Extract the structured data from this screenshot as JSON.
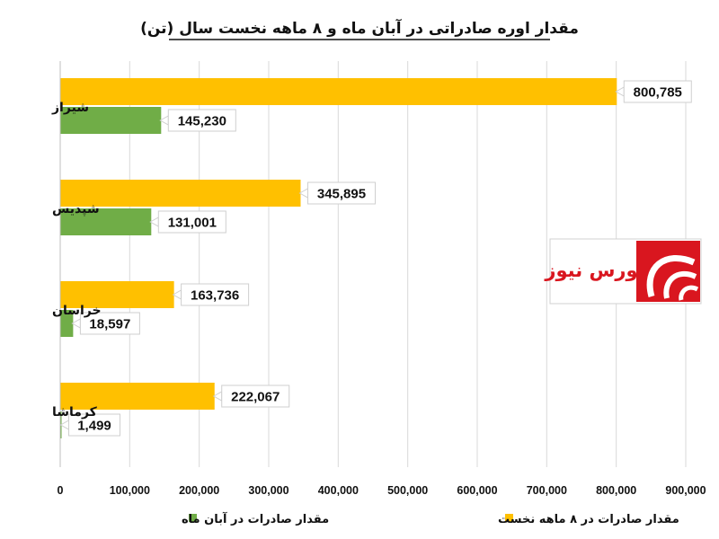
{
  "chart_data": {
    "type": "bar",
    "orientation": "horizontal",
    "title": "مقدار اوره صادراتی در آبان ماه و ۸ ماهه نخست سال (تن)",
    "categories": [
      "شیراز",
      "شپدیس",
      "خراسان",
      "کرماشا"
    ],
    "series": [
      {
        "name": "مقدار صادرات در ۸ ماهه نخست",
        "color": "#FFC000",
        "values": [
          800785,
          345895,
          163736,
          222067
        ],
        "labels": [
          "800,785",
          "345,895",
          "163,736",
          "222,067"
        ]
      },
      {
        "name": "مقدار صادرات در آبان ماه",
        "color": "#70AD47",
        "values": [
          145230,
          131001,
          18597,
          1499
        ],
        "labels": [
          "145,230",
          "131,001",
          "18,597",
          "1,499"
        ]
      }
    ],
    "xlim": [
      0,
      900000
    ],
    "xticks": [
      0,
      100000,
      200000,
      300000,
      400000,
      500000,
      600000,
      700000,
      800000,
      900000
    ],
    "xtick_labels": [
      "0",
      "100,000",
      "200,000",
      "300,000",
      "400,000",
      "500,000",
      "600,000",
      "700,000",
      "800,000",
      "900,000"
    ],
    "grid": true,
    "legend_position": "bottom"
  },
  "logo": {
    "text": "بورس نیوز",
    "color": "#d9161f"
  }
}
